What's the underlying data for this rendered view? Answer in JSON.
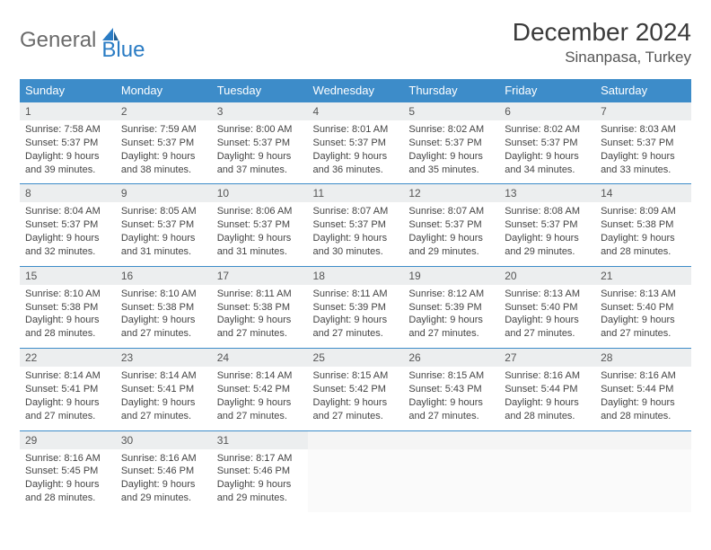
{
  "brand": {
    "text1": "General",
    "text2": "Blue"
  },
  "title": "December 2024",
  "location": "Sinanpasa, Turkey",
  "colors": {
    "header_bg": "#3d8cc9",
    "header_text": "#ffffff",
    "daynum_bg": "#eceeef",
    "border": "#3d8cc9",
    "body_text": "#444444"
  },
  "day_names": [
    "Sunday",
    "Monday",
    "Tuesday",
    "Wednesday",
    "Thursday",
    "Friday",
    "Saturday"
  ],
  "weeks": [
    [
      {
        "n": "1",
        "sr": "Sunrise: 7:58 AM",
        "ss": "Sunset: 5:37 PM",
        "d1": "Daylight: 9 hours",
        "d2": "and 39 minutes."
      },
      {
        "n": "2",
        "sr": "Sunrise: 7:59 AM",
        "ss": "Sunset: 5:37 PM",
        "d1": "Daylight: 9 hours",
        "d2": "and 38 minutes."
      },
      {
        "n": "3",
        "sr": "Sunrise: 8:00 AM",
        "ss": "Sunset: 5:37 PM",
        "d1": "Daylight: 9 hours",
        "d2": "and 37 minutes."
      },
      {
        "n": "4",
        "sr": "Sunrise: 8:01 AM",
        "ss": "Sunset: 5:37 PM",
        "d1": "Daylight: 9 hours",
        "d2": "and 36 minutes."
      },
      {
        "n": "5",
        "sr": "Sunrise: 8:02 AM",
        "ss": "Sunset: 5:37 PM",
        "d1": "Daylight: 9 hours",
        "d2": "and 35 minutes."
      },
      {
        "n": "6",
        "sr": "Sunrise: 8:02 AM",
        "ss": "Sunset: 5:37 PM",
        "d1": "Daylight: 9 hours",
        "d2": "and 34 minutes."
      },
      {
        "n": "7",
        "sr": "Sunrise: 8:03 AM",
        "ss": "Sunset: 5:37 PM",
        "d1": "Daylight: 9 hours",
        "d2": "and 33 minutes."
      }
    ],
    [
      {
        "n": "8",
        "sr": "Sunrise: 8:04 AM",
        "ss": "Sunset: 5:37 PM",
        "d1": "Daylight: 9 hours",
        "d2": "and 32 minutes."
      },
      {
        "n": "9",
        "sr": "Sunrise: 8:05 AM",
        "ss": "Sunset: 5:37 PM",
        "d1": "Daylight: 9 hours",
        "d2": "and 31 minutes."
      },
      {
        "n": "10",
        "sr": "Sunrise: 8:06 AM",
        "ss": "Sunset: 5:37 PM",
        "d1": "Daylight: 9 hours",
        "d2": "and 31 minutes."
      },
      {
        "n": "11",
        "sr": "Sunrise: 8:07 AM",
        "ss": "Sunset: 5:37 PM",
        "d1": "Daylight: 9 hours",
        "d2": "and 30 minutes."
      },
      {
        "n": "12",
        "sr": "Sunrise: 8:07 AM",
        "ss": "Sunset: 5:37 PM",
        "d1": "Daylight: 9 hours",
        "d2": "and 29 minutes."
      },
      {
        "n": "13",
        "sr": "Sunrise: 8:08 AM",
        "ss": "Sunset: 5:37 PM",
        "d1": "Daylight: 9 hours",
        "d2": "and 29 minutes."
      },
      {
        "n": "14",
        "sr": "Sunrise: 8:09 AM",
        "ss": "Sunset: 5:38 PM",
        "d1": "Daylight: 9 hours",
        "d2": "and 28 minutes."
      }
    ],
    [
      {
        "n": "15",
        "sr": "Sunrise: 8:10 AM",
        "ss": "Sunset: 5:38 PM",
        "d1": "Daylight: 9 hours",
        "d2": "and 28 minutes."
      },
      {
        "n": "16",
        "sr": "Sunrise: 8:10 AM",
        "ss": "Sunset: 5:38 PM",
        "d1": "Daylight: 9 hours",
        "d2": "and 27 minutes."
      },
      {
        "n": "17",
        "sr": "Sunrise: 8:11 AM",
        "ss": "Sunset: 5:38 PM",
        "d1": "Daylight: 9 hours",
        "d2": "and 27 minutes."
      },
      {
        "n": "18",
        "sr": "Sunrise: 8:11 AM",
        "ss": "Sunset: 5:39 PM",
        "d1": "Daylight: 9 hours",
        "d2": "and 27 minutes."
      },
      {
        "n": "19",
        "sr": "Sunrise: 8:12 AM",
        "ss": "Sunset: 5:39 PM",
        "d1": "Daylight: 9 hours",
        "d2": "and 27 minutes."
      },
      {
        "n": "20",
        "sr": "Sunrise: 8:13 AM",
        "ss": "Sunset: 5:40 PM",
        "d1": "Daylight: 9 hours",
        "d2": "and 27 minutes."
      },
      {
        "n": "21",
        "sr": "Sunrise: 8:13 AM",
        "ss": "Sunset: 5:40 PM",
        "d1": "Daylight: 9 hours",
        "d2": "and 27 minutes."
      }
    ],
    [
      {
        "n": "22",
        "sr": "Sunrise: 8:14 AM",
        "ss": "Sunset: 5:41 PM",
        "d1": "Daylight: 9 hours",
        "d2": "and 27 minutes."
      },
      {
        "n": "23",
        "sr": "Sunrise: 8:14 AM",
        "ss": "Sunset: 5:41 PM",
        "d1": "Daylight: 9 hours",
        "d2": "and 27 minutes."
      },
      {
        "n": "24",
        "sr": "Sunrise: 8:14 AM",
        "ss": "Sunset: 5:42 PM",
        "d1": "Daylight: 9 hours",
        "d2": "and 27 minutes."
      },
      {
        "n": "25",
        "sr": "Sunrise: 8:15 AM",
        "ss": "Sunset: 5:42 PM",
        "d1": "Daylight: 9 hours",
        "d2": "and 27 minutes."
      },
      {
        "n": "26",
        "sr": "Sunrise: 8:15 AM",
        "ss": "Sunset: 5:43 PM",
        "d1": "Daylight: 9 hours",
        "d2": "and 27 minutes."
      },
      {
        "n": "27",
        "sr": "Sunrise: 8:16 AM",
        "ss": "Sunset: 5:44 PM",
        "d1": "Daylight: 9 hours",
        "d2": "and 28 minutes."
      },
      {
        "n": "28",
        "sr": "Sunrise: 8:16 AM",
        "ss": "Sunset: 5:44 PM",
        "d1": "Daylight: 9 hours",
        "d2": "and 28 minutes."
      }
    ],
    [
      {
        "n": "29",
        "sr": "Sunrise: 8:16 AM",
        "ss": "Sunset: 5:45 PM",
        "d1": "Daylight: 9 hours",
        "d2": "and 28 minutes."
      },
      {
        "n": "30",
        "sr": "Sunrise: 8:16 AM",
        "ss": "Sunset: 5:46 PM",
        "d1": "Daylight: 9 hours",
        "d2": "and 29 minutes."
      },
      {
        "n": "31",
        "sr": "Sunrise: 8:17 AM",
        "ss": "Sunset: 5:46 PM",
        "d1": "Daylight: 9 hours",
        "d2": "and 29 minutes."
      },
      null,
      null,
      null,
      null
    ]
  ]
}
